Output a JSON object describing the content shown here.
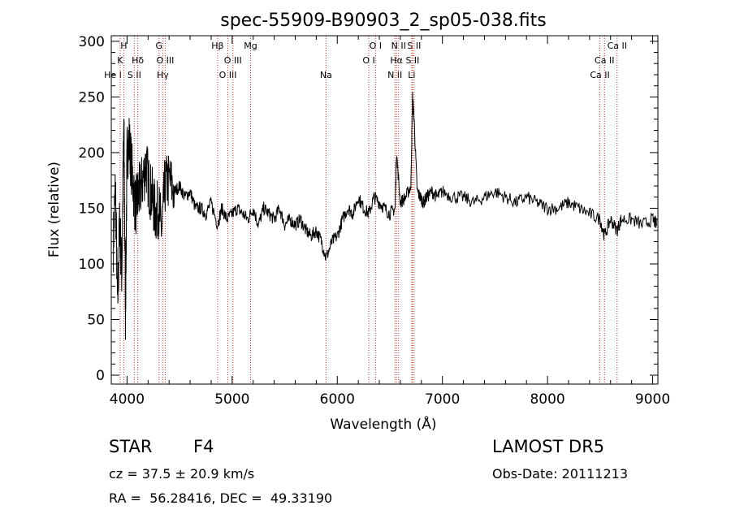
{
  "chart_data": {
    "type": "line",
    "title": "spec-55909-B90903_2_sp05-038.fits",
    "xlabel": "Wavelength (Å)",
    "ylabel": "Flux (relative)",
    "xlim": [
      3850,
      9050
    ],
    "ylim": [
      -8,
      305
    ],
    "xticks": [
      4000,
      5000,
      6000,
      7000,
      8000,
      9000
    ],
    "yticks": [
      0,
      50,
      100,
      150,
      200,
      250,
      300
    ],
    "xtick_labels": [
      "4000",
      "5000",
      "6000",
      "7000",
      "8000",
      "9000"
    ],
    "ytick_labels": [
      "0",
      "50",
      "100",
      "150",
      "200",
      "250",
      "300"
    ],
    "grid": false,
    "line_color": "#000000",
    "marker_color": "#c0392b",
    "spectrum": {
      "x": [
        3870,
        3890,
        3910,
        3930,
        3950,
        3970,
        3985,
        4000,
        4020,
        4050,
        4080,
        4102,
        4120,
        4150,
        4180,
        4210,
        4240,
        4270,
        4300,
        4330,
        4360,
        4400,
        4450,
        4500,
        4550,
        4600,
        4650,
        4700,
        4750,
        4800,
        4861,
        4900,
        4950,
        5000,
        5050,
        5100,
        5150,
        5200,
        5250,
        5300,
        5350,
        5400,
        5450,
        5500,
        5550,
        5600,
        5650,
        5700,
        5750,
        5800,
        5850,
        5893,
        5950,
        6000,
        6050,
        6100,
        6150,
        6200,
        6250,
        6300,
        6350,
        6400,
        6450,
        6500,
        6550,
        6563,
        6600,
        6650,
        6700,
        6716,
        6731,
        6760,
        6790,
        6820,
        6850,
        6900,
        6950,
        7000,
        7100,
        7200,
        7300,
        7400,
        7500,
        7600,
        7700,
        7800,
        7900,
        8000,
        8100,
        8200,
        8300,
        8400,
        8500,
        8542,
        8600,
        8662,
        8700,
        8800,
        8900,
        9000,
        9040
      ],
      "y": [
        120,
        170,
        60,
        140,
        90,
        230,
        55,
        200,
        210,
        180,
        150,
        160,
        165,
        175,
        190,
        170,
        160,
        145,
        150,
        130,
        170,
        175,
        165,
        170,
        160,
        165,
        150,
        150,
        145,
        155,
        135,
        150,
        140,
        145,
        150,
        145,
        140,
        150,
        135,
        150,
        145,
        140,
        150,
        135,
        140,
        135,
        140,
        130,
        125,
        130,
        120,
        105,
        120,
        125,
        140,
        150,
        145,
        160,
        150,
        145,
        160,
        155,
        150,
        145,
        150,
        200,
        155,
        160,
        170,
        250,
        230,
        165,
        160,
        155,
        160,
        165,
        160,
        165,
        160,
        160,
        155,
        160,
        165,
        160,
        155,
        160,
        155,
        150,
        150,
        155,
        150,
        145,
        140,
        125,
        140,
        130,
        140,
        140,
        135,
        140,
        135
      ]
    },
    "line_markers": [
      {
        "x": 3835,
        "label": "He I",
        "row": 3
      },
      {
        "x": 3934,
        "label": "K",
        "row": 2
      },
      {
        "x": 3969,
        "label": "H",
        "row": 1
      },
      {
        "x": 4069,
        "label": "S II",
        "row": 3
      },
      {
        "x": 4102,
        "label": "Hδ",
        "row": 2
      },
      {
        "x": 4304,
        "label": "G",
        "row": 1
      },
      {
        "x": 4340,
        "label": "Hγ",
        "row": 3
      },
      {
        "x": 4363,
        "label": "O III",
        "row": 2
      },
      {
        "x": 4861,
        "label": "Hβ",
        "row": 1
      },
      {
        "x": 4959,
        "label": "O III",
        "row": 3
      },
      {
        "x": 5007,
        "label": "O III",
        "row": 2
      },
      {
        "x": 5175,
        "label": "Mg",
        "row": 1
      },
      {
        "x": 5893,
        "label": "Na",
        "row": 3
      },
      {
        "x": 6300,
        "label": "O I",
        "row": 2
      },
      {
        "x": 6364,
        "label": "O I",
        "row": 1
      },
      {
        "x": 6548,
        "label": "N II",
        "row": 3
      },
      {
        "x": 6563,
        "label": "Hα",
        "row": 2
      },
      {
        "x": 6583,
        "label": "N II",
        "row": 1
      },
      {
        "x": 6716,
        "label": "S II",
        "row": 2
      },
      {
        "x": 6731,
        "label": "S II",
        "row": 1
      },
      {
        "x": 6708,
        "label": "Li",
        "row": 3
      },
      {
        "x": 8498,
        "label": "Ca II",
        "row": 3
      },
      {
        "x": 8542,
        "label": "Ca II",
        "row": 2
      },
      {
        "x": 8662,
        "label": "Ca II",
        "row": 1
      }
    ]
  },
  "info": {
    "class_label": "STAR",
    "subclass": "F4",
    "cz": "cz = 37.5 ± 20.9 km/s",
    "ra_dec": "RA =  56.28416, DEC =  49.33190",
    "survey": "LAMOST DR5",
    "obs_date": "Obs-Date: 20111213"
  }
}
